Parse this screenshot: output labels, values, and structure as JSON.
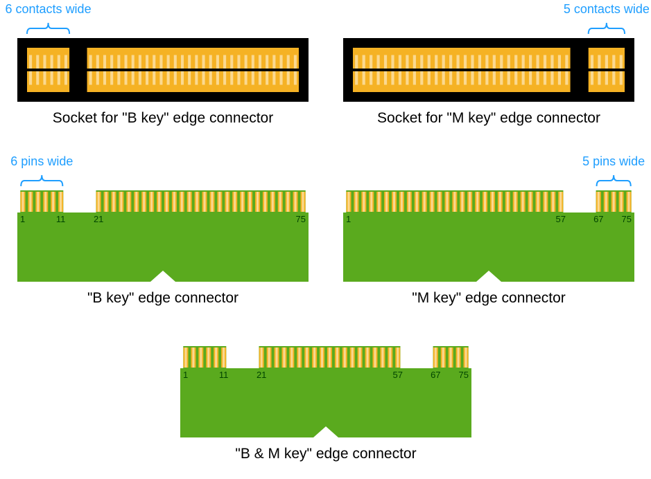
{
  "colors": {
    "background": "#ffffff",
    "socket_body": "#000000",
    "pin_gold": "#f5b224",
    "pin_gold_light": "#fbd990",
    "pcb_green": "#5aaa1e",
    "annotation_blue": "#1e9eff",
    "caption_black": "#000000",
    "pinlabel_dark": "#003300",
    "bracket_stroke": "#1e9eff"
  },
  "dimensions": {
    "viewbox_w": 939,
    "viewbox_h": 692,
    "socket_w": 420,
    "socket_h": 92,
    "socket_padding": 14,
    "contact_row_gap": 4,
    "pcb_w": 420,
    "pcb_body_h": 100,
    "pcb_pin_h": 32,
    "pin_pitch": 11.0,
    "pin_stroke_w": 7,
    "pin_stroke_light_w": 3
  },
  "fonts": {
    "annotation_size": 18,
    "caption_size": 21,
    "pinlabel_size": 13
  },
  "bkey_socket": {
    "annotation": "6 contacts wide",
    "caption": "Socket for \"B key\" edge connector",
    "left_contacts": 6,
    "right_contacts": 30,
    "gap_contacts": 2.5
  },
  "mkey_socket": {
    "annotation": "5 contacts wide",
    "caption": "Socket for \"M key\" edge connector",
    "left_contacts": 30,
    "right_contacts": 5,
    "gap_contacts": 2.5
  },
  "bkey_edge": {
    "annotation": "6 pins wide",
    "caption": "\"B key\" edge connector",
    "segments": [
      {
        "start": 1,
        "end": 11
      },
      {
        "start": 21,
        "end": 75
      }
    ],
    "labels": [
      1,
      11,
      21,
      75
    ]
  },
  "mkey_edge": {
    "annotation": "5 pins wide",
    "caption": "\"M key\" edge connector",
    "segments": [
      {
        "start": 1,
        "end": 57
      },
      {
        "start": 67,
        "end": 75
      }
    ],
    "labels": [
      1,
      57,
      67,
      75
    ]
  },
  "bmkey_edge": {
    "caption": "\"B & M key\" edge connector",
    "segments": [
      {
        "start": 1,
        "end": 11
      },
      {
        "start": 21,
        "end": 57
      },
      {
        "start": 67,
        "end": 75
      }
    ],
    "labels": [
      1,
      11,
      21,
      57,
      67,
      75
    ]
  }
}
